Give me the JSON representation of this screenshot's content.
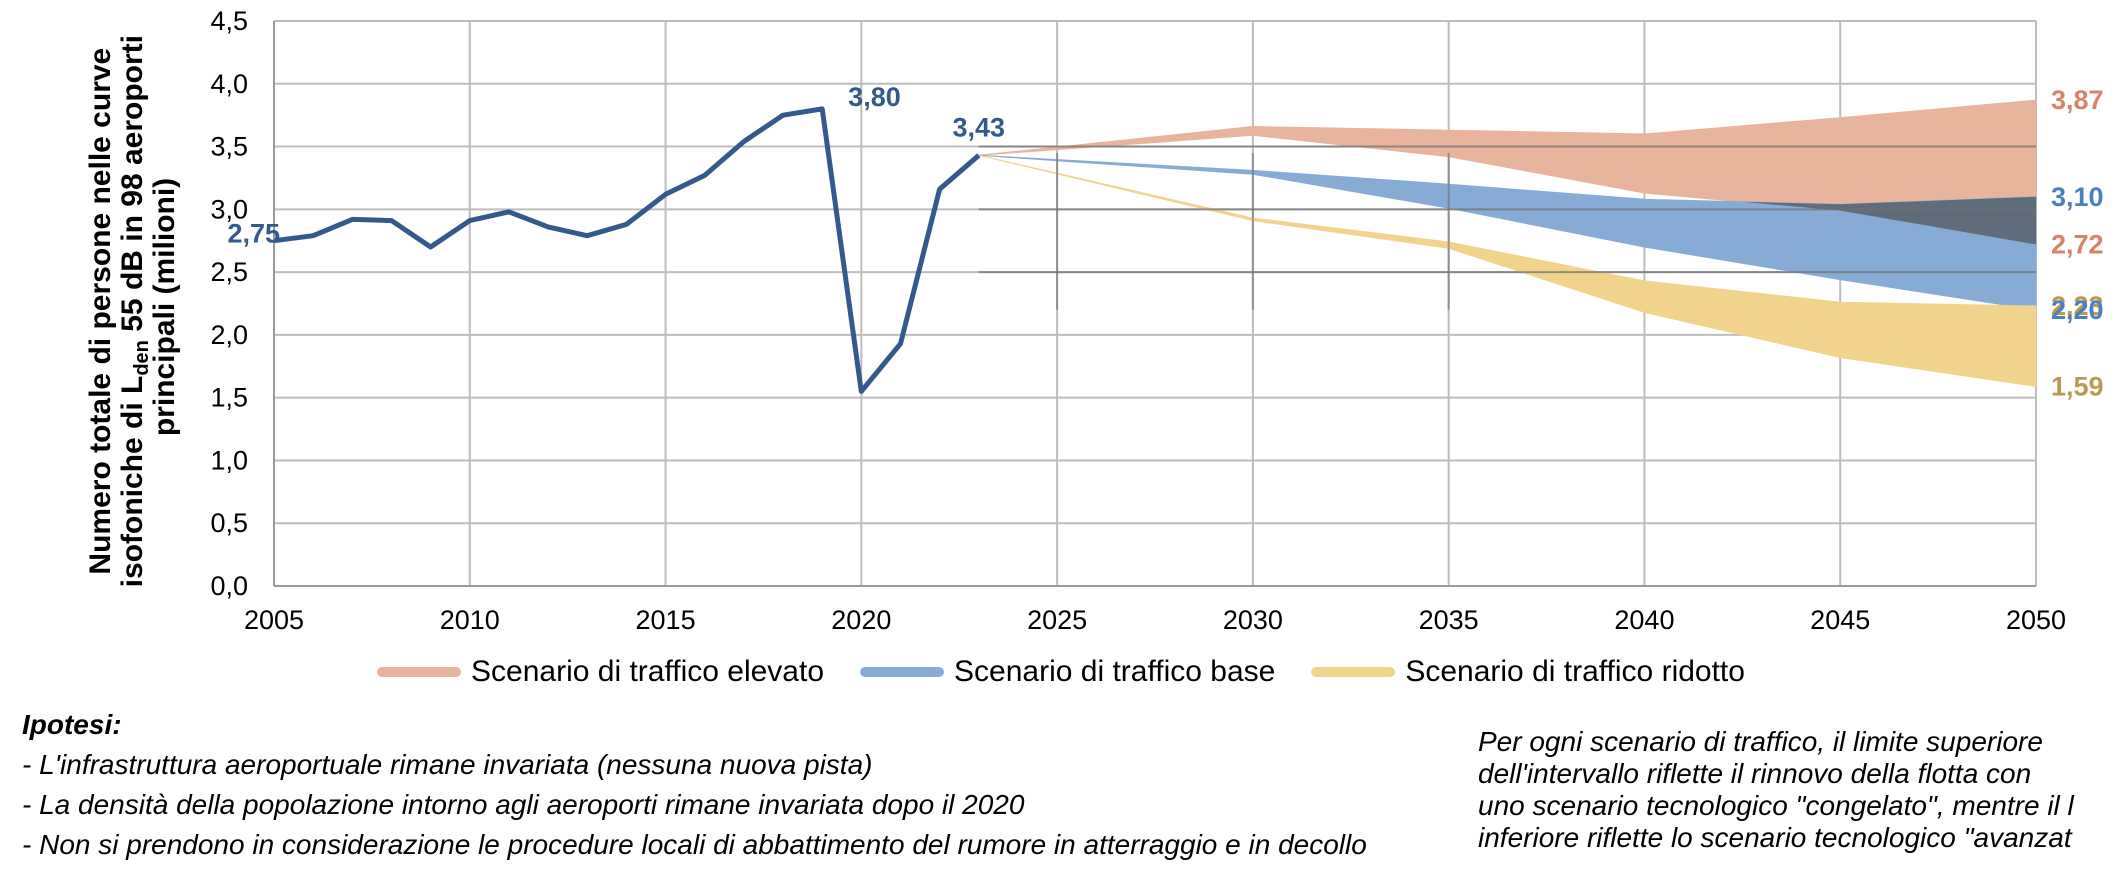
{
  "chart_data": {
    "type": "area",
    "ylabel_lines": [
      "Numero totale di persone nelle curve",
      "isofoniche di L",
      "den",
      " 55 dB in 98 aeroporti",
      "principali (milioni)"
    ],
    "xlim": [
      2005,
      2050
    ],
    "ylim": [
      0,
      4.5
    ],
    "x_ticks": [
      "2005",
      "2010",
      "2015",
      "2020",
      "2025",
      "2030",
      "2035",
      "2040",
      "2045",
      "2050"
    ],
    "y_ticks": [
      "0,0",
      "0,5",
      "1,0",
      "1,5",
      "2,0",
      "2,5",
      "3,0",
      "3,5",
      "4,0",
      "4,5"
    ],
    "historical": {
      "color": "#335a8a",
      "x": [
        2005,
        2006,
        2007,
        2008,
        2009,
        2010,
        2011,
        2012,
        2013,
        2014,
        2015,
        2016,
        2017,
        2018,
        2019,
        2020,
        2021,
        2022,
        2023
      ],
      "y": [
        2.75,
        2.79,
        2.92,
        2.91,
        2.7,
        2.91,
        2.98,
        2.86,
        2.79,
        2.88,
        3.12,
        3.27,
        3.54,
        3.75,
        3.8,
        1.55,
        1.93,
        3.16,
        3.43
      ]
    },
    "scenarios": [
      {
        "name": "Scenario di traffico elevato",
        "color": "#e8b49b",
        "x": [
          2023,
          2030,
          2035,
          2040,
          2045,
          2050
        ],
        "upper": [
          3.43,
          3.66,
          3.63,
          3.6,
          3.73,
          3.87
        ],
        "lower": [
          3.43,
          3.59,
          3.42,
          3.13,
          2.99,
          2.72
        ]
      },
      {
        "name": "Scenario di traffico base",
        "color": "#86acd6",
        "x": [
          2023,
          2030,
          2035,
          2040,
          2045,
          2050
        ],
        "upper": [
          3.43,
          3.31,
          3.2,
          3.08,
          3.04,
          3.1
        ],
        "lower": [
          3.43,
          3.28,
          3.01,
          2.7,
          2.44,
          2.2
        ]
      },
      {
        "name": "Scenario di traffico ridotto",
        "color": "#f2d38e",
        "x": [
          2023,
          2030,
          2035,
          2040,
          2045,
          2050
        ],
        "upper": [
          3.43,
          2.93,
          2.74,
          2.43,
          2.26,
          2.23
        ],
        "lower": [
          3.43,
          2.91,
          2.69,
          2.18,
          1.82,
          1.59
        ]
      }
    ],
    "overlap_color": "#5f6d7a",
    "data_labels": [
      {
        "text": "2,75",
        "x": 2005,
        "y": 2.75,
        "color": "#335a8a",
        "anchor": "end"
      },
      {
        "text": "3,80",
        "x": 2019,
        "y": 3.8,
        "color": "#335a8a",
        "anchor": "start"
      },
      {
        "text": "3,43",
        "x": 2023,
        "y": 3.43,
        "color": "#335a8a",
        "anchor": "middle"
      },
      {
        "text": "3,87",
        "x": 2050,
        "y": 3.87,
        "color": "#d9826a",
        "anchor": "start"
      },
      {
        "text": "3,10",
        "x": 2050,
        "y": 3.1,
        "color": "#4a7fc0",
        "anchor": "start"
      },
      {
        "text": "2,72",
        "x": 2050,
        "y": 2.72,
        "color": "#d9826a",
        "anchor": "start"
      },
      {
        "text": "2,23",
        "x": 2050,
        "y": 2.23,
        "color": "#b99a4e",
        "anchor": "start"
      },
      {
        "text": "2,20",
        "x": 2050,
        "y": 2.2,
        "color": "#4a7fc0",
        "anchor": "start"
      },
      {
        "text": "1,59",
        "x": 2050,
        "y": 1.59,
        "color": "#b99a4e",
        "anchor": "start"
      }
    ],
    "legend_position": "bottom"
  },
  "notes": {
    "title": "Ipotesi:",
    "items": [
      "- L'infrastruttura aeroportuale rimane invariata (nessuna nuova pista)",
      "- La densità della popolazione intorno agli aeroporti rimane invariata dopo il 2020",
      "- Non si prendono in considerazione le procedure locali di abbattimento del rumore in atterraggio e in decollo"
    ],
    "right_lines": [
      "Per ogni scenario di traffico, il limite superiore",
      "dell'intervallo riflette il rinnovo della flotta con",
      "uno scenario tecnologico \"congelato\", mentre il l",
      "inferiore riflette lo scenario tecnologico \"avanzat"
    ]
  }
}
